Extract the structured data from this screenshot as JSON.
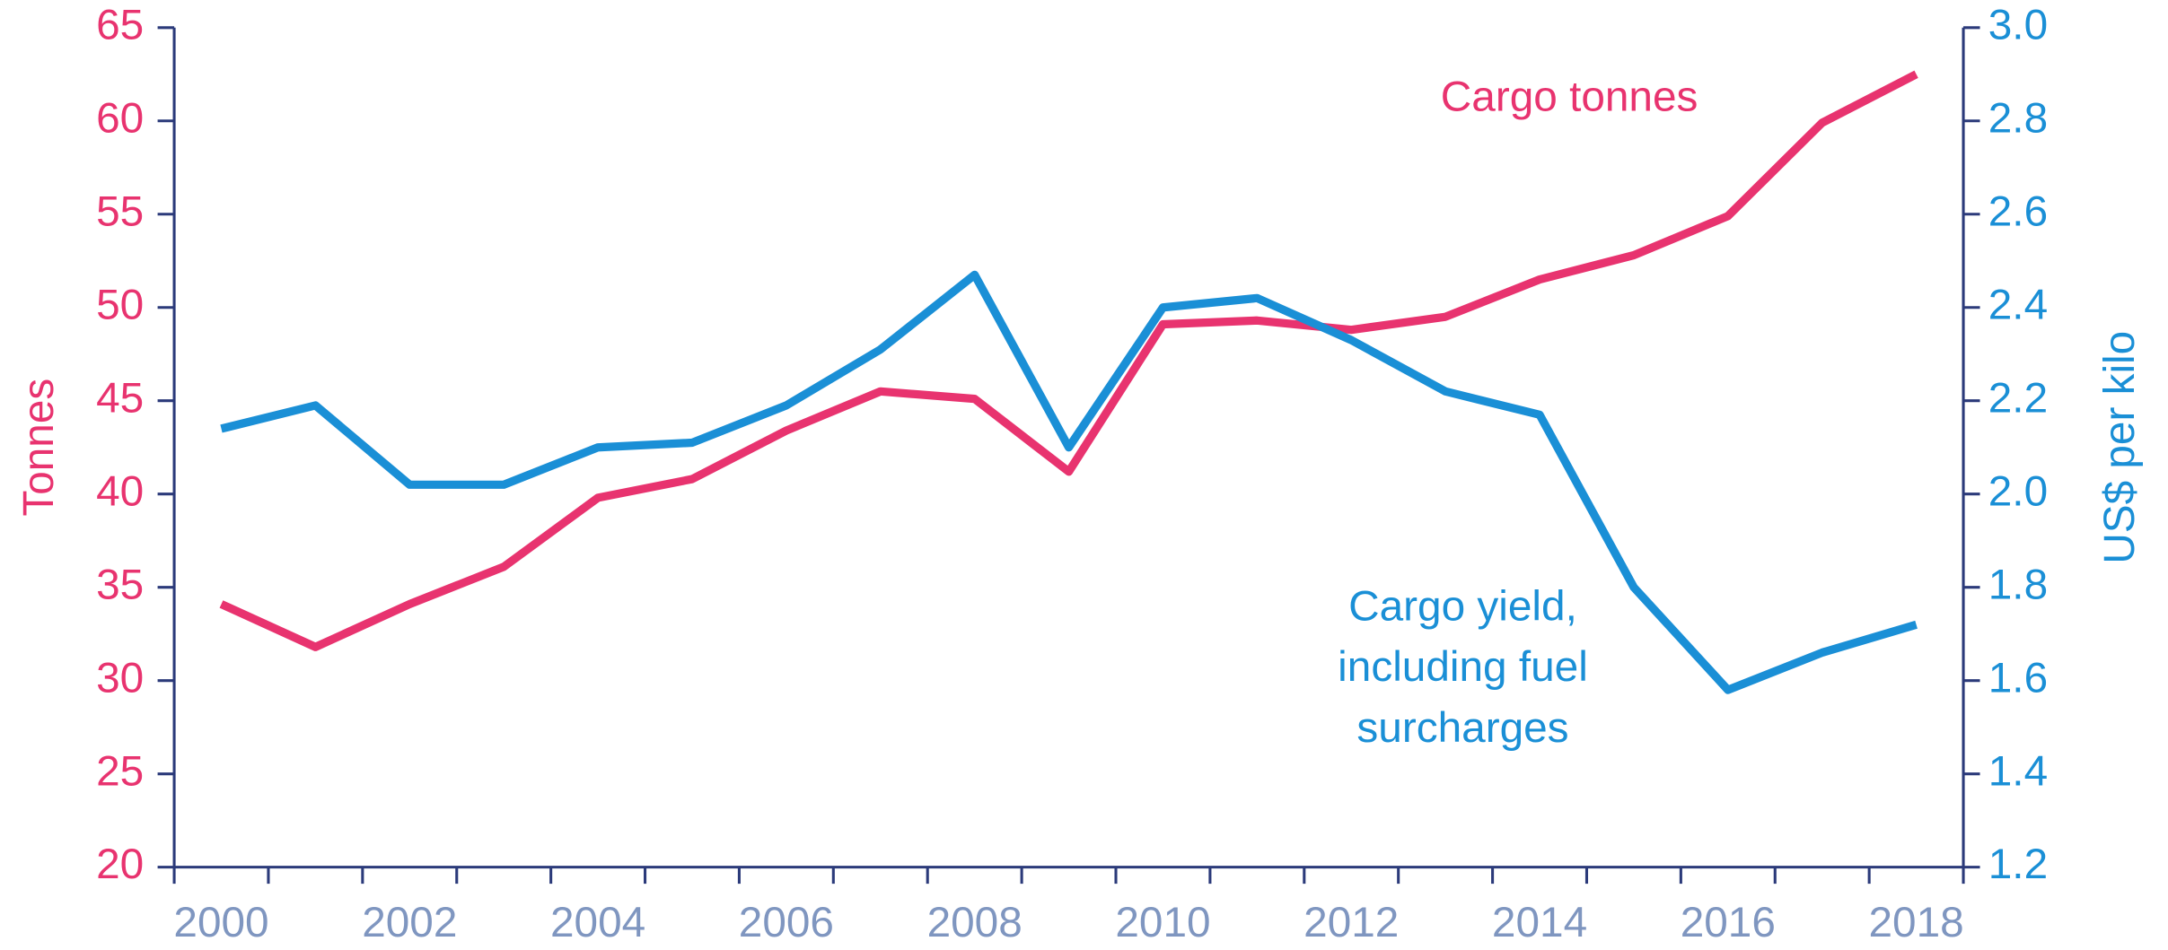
{
  "chart_data": {
    "type": "line",
    "categories": [
      2000,
      null,
      2002,
      null,
      2004,
      null,
      2006,
      null,
      2008,
      null,
      2010,
      null,
      2012,
      null,
      2014,
      null,
      2016,
      null,
      2018
    ],
    "series": [
      {
        "name": "Cargo tonnes",
        "color": "#e8336f",
        "axis": "y",
        "values": [
          34.1,
          31.8,
          34.1,
          36.1,
          39.8,
          40.8,
          43.4,
          45.5,
          45.1,
          41.2,
          49.1,
          49.3,
          48.8,
          49.5,
          51.5,
          52.8,
          54.9,
          59.9,
          62.5
        ]
      },
      {
        "name": "Cargo yield, including fuel surcharges",
        "color": "#1a8fd6",
        "axis": "y2",
        "values": [
          2.14,
          2.19,
          2.02,
          2.02,
          2.1,
          2.11,
          2.19,
          2.31,
          2.47,
          2.1,
          2.4,
          2.42,
          2.33,
          2.22,
          2.17,
          1.8,
          1.58,
          1.66,
          1.72
        ]
      }
    ],
    "annotations": [
      {
        "lines": [
          "Cargo tonnes"
        ],
        "color": "#e8336f"
      },
      {
        "lines": [
          "Cargo yield,",
          "including fuel",
          "surcharges"
        ],
        "color": "#1a8fd6"
      }
    ],
    "ylabel": "Tonnes",
    "y2label": "US$ per kilo",
    "ylim": [
      20,
      65
    ],
    "yticks": [
      20,
      25,
      30,
      35,
      40,
      45,
      50,
      55,
      60,
      65
    ],
    "y2lim": [
      1.2,
      3.0
    ],
    "y2ticks": [
      {
        "value": 1.2,
        "label": "1.2"
      },
      {
        "value": 1.4,
        "label": "1.4"
      },
      {
        "value": 1.6,
        "label": "1.6"
      },
      {
        "value": 1.8,
        "label": "1.8"
      },
      {
        "value": 2.0,
        "label": "2.0"
      },
      {
        "value": 2.2,
        "label": "2.2"
      },
      {
        "value": 2.4,
        "label": "2.4"
      },
      {
        "value": 2.6,
        "label": "2.6"
      },
      {
        "value": 2.8,
        "label": "2.8"
      },
      {
        "value": 3.0,
        "label": "3.0"
      }
    ],
    "grid": false
  }
}
